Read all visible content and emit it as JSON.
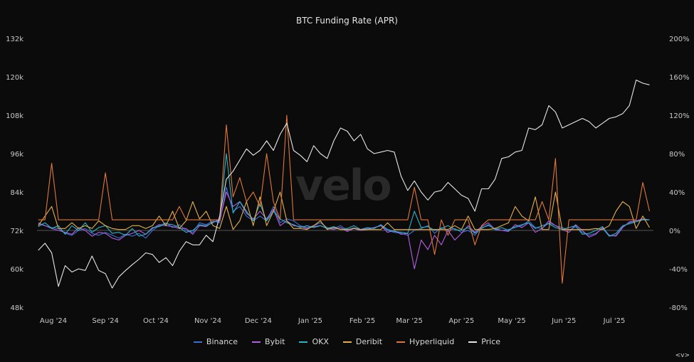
{
  "chart_data": {
    "type": "line",
    "title": "BTC Funding Rate (APR)",
    "watermark": "velo",
    "xlabel": "",
    "ylabel_left": "",
    "ylabel_right": "",
    "x_ticks": [
      {
        "date": "2024-08-01",
        "label": "Aug '24"
      },
      {
        "date": "2024-09-01",
        "label": "Sep '24"
      },
      {
        "date": "2024-10-01",
        "label": "Oct '24"
      },
      {
        "date": "2024-11-01",
        "label": "Nov '24"
      },
      {
        "date": "2024-12-01",
        "label": "Dec '24"
      },
      {
        "date": "2025-01-01",
        "label": "Jan '25"
      },
      {
        "date": "2025-02-01",
        "label": "Feb '25"
      },
      {
        "date": "2025-03-01",
        "label": "Mar '25"
      },
      {
        "date": "2025-04-01",
        "label": "Apr '25"
      },
      {
        "date": "2025-05-01",
        "label": "May '25"
      },
      {
        "date": "2025-06-01",
        "label": "Jun '25"
      },
      {
        "date": "2025-07-01",
        "label": "Jul '25"
      }
    ],
    "y_left": {
      "ylim": [
        48,
        132
      ],
      "ticks": [
        "132k",
        "120k",
        "108k",
        "96k",
        "84k",
        "72k",
        "60k",
        "48k"
      ],
      "values": [
        132,
        120,
        108,
        96,
        84,
        72,
        60,
        48
      ]
    },
    "y_right": {
      "ylim": [
        -80,
        200
      ],
      "ticks": [
        "200%",
        "160%",
        "120%",
        "80%",
        "40%",
        "0%",
        "-40%",
        "-80%"
      ],
      "values": [
        200,
        160,
        120,
        80,
        40,
        0,
        -40,
        -80
      ]
    },
    "grid": false,
    "legend_placement": "bottom",
    "x": [
      "2024-07-23",
      "2024-07-27",
      "2024-07-31",
      "2024-08-04",
      "2024-08-08",
      "2024-08-12",
      "2024-08-16",
      "2024-08-20",
      "2024-08-24",
      "2024-08-28",
      "2024-09-01",
      "2024-09-05",
      "2024-09-09",
      "2024-09-13",
      "2024-09-17",
      "2024-09-21",
      "2024-09-25",
      "2024-09-29",
      "2024-10-03",
      "2024-10-07",
      "2024-10-11",
      "2024-10-15",
      "2024-10-19",
      "2024-10-23",
      "2024-10-27",
      "2024-10-31",
      "2024-11-04",
      "2024-11-08",
      "2024-11-12",
      "2024-11-16",
      "2024-11-20",
      "2024-11-24",
      "2024-11-28",
      "2024-12-02",
      "2024-12-06",
      "2024-12-10",
      "2024-12-14",
      "2024-12-18",
      "2024-12-22",
      "2024-12-26",
      "2024-12-30",
      "2025-01-03",
      "2025-01-07",
      "2025-01-11",
      "2025-01-15",
      "2025-01-19",
      "2025-01-23",
      "2025-01-27",
      "2025-01-31",
      "2025-02-04",
      "2025-02-08",
      "2025-02-12",
      "2025-02-16",
      "2025-02-20",
      "2025-02-24",
      "2025-02-28",
      "2025-03-04",
      "2025-03-08",
      "2025-03-12",
      "2025-03-16",
      "2025-03-20",
      "2025-03-24",
      "2025-03-28",
      "2025-04-01",
      "2025-04-05",
      "2025-04-09",
      "2025-04-13",
      "2025-04-17",
      "2025-04-21",
      "2025-04-25",
      "2025-04-29",
      "2025-05-03",
      "2025-05-07",
      "2025-05-11",
      "2025-05-15",
      "2025-05-19",
      "2025-05-23",
      "2025-05-27",
      "2025-05-31",
      "2025-06-04",
      "2025-06-08",
      "2025-06-12",
      "2025-06-16",
      "2025-06-20",
      "2025-06-24",
      "2025-06-28",
      "2025-07-02",
      "2025-07-06",
      "2025-07-10",
      "2025-07-14",
      "2025-07-18",
      "2025-07-22"
    ],
    "series": [
      {
        "name": "Binance",
        "axis": "right",
        "unit": "%",
        "color": "#3b6fd6",
        "values": [
          8,
          5,
          3,
          2,
          -3,
          -5,
          0,
          2,
          -3,
          -5,
          -2,
          -5,
          -8,
          -4,
          -6,
          -3,
          -8,
          0,
          5,
          8,
          3,
          6,
          0,
          -2,
          8,
          6,
          10,
          8,
          45,
          20,
          25,
          15,
          10,
          15,
          10,
          25,
          8,
          12,
          10,
          5,
          3,
          5,
          8,
          3,
          2,
          5,
          0,
          3,
          1,
          2,
          3,
          5,
          0,
          -2,
          -3,
          -5,
          0,
          2,
          5,
          -3,
          3,
          0,
          2,
          -2,
          0,
          -5,
          3,
          5,
          2,
          0,
          1,
          3,
          5,
          10,
          3,
          2,
          8,
          5,
          3,
          0,
          4,
          -2,
          -5,
          -3,
          2,
          -6,
          -5,
          4,
          8,
          10,
          11,
          11
        ]
      },
      {
        "name": "Bybit",
        "axis": "right",
        "unit": "%",
        "color": "#b35ee0",
        "values": [
          7,
          5,
          2,
          0,
          -2,
          -4,
          3,
          0,
          -6,
          -2,
          -3,
          -8,
          -10,
          -5,
          -3,
          0,
          -4,
          2,
          6,
          5,
          4,
          2,
          2,
          -4,
          5,
          4,
          9,
          10,
          40,
          25,
          30,
          18,
          12,
          20,
          12,
          22,
          5,
          10,
          5,
          4,
          2,
          4,
          5,
          2,
          1,
          3,
          -1,
          2,
          0,
          1,
          3,
          5,
          -2,
          0,
          -4,
          -3,
          -40,
          -10,
          -20,
          -5,
          -15,
          0,
          -10,
          -3,
          5,
          -2,
          4,
          8,
          1,
          0,
          -1,
          6,
          3,
          8,
          -2,
          2,
          10,
          5,
          1,
          -2,
          6,
          0,
          -7,
          -4,
          3,
          -5,
          -6,
          3,
          9,
          10,
          12,
          11
        ]
      },
      {
        "name": "OKX",
        "axis": "right",
        "unit": "%",
        "color": "#2ab3c4",
        "values": [
          4,
          8,
          2,
          5,
          -4,
          5,
          0,
          8,
          -2,
          3,
          5,
          -3,
          -2,
          -5,
          2,
          -6,
          -4,
          3,
          4,
          7,
          6,
          3,
          -2,
          0,
          6,
          5,
          8,
          12,
          80,
          18,
          30,
          20,
          10,
          28,
          10,
          20,
          12,
          8,
          6,
          3,
          5,
          3,
          5,
          2,
          4,
          1,
          2,
          5,
          1,
          3,
          2,
          6,
          1,
          -1,
          -2,
          -3,
          20,
          3,
          4,
          0,
          2,
          5,
          1,
          0,
          3,
          -3,
          2,
          6,
          1,
          3,
          0,
          4,
          6,
          8,
          2,
          5,
          7,
          3,
          1,
          3,
          5,
          -4,
          -3,
          0,
          4,
          -6,
          -3,
          5,
          7,
          9,
          11,
          11
        ]
      },
      {
        "name": "Deribit",
        "axis": "right",
        "unit": "%",
        "color": "#e3b04b",
        "values": [
          5,
          15,
          25,
          2,
          2,
          8,
          2,
          5,
          2,
          10,
          5,
          2,
          1,
          1,
          5,
          5,
          2,
          5,
          15,
          5,
          20,
          2,
          10,
          30,
          12,
          20,
          5,
          2,
          25,
          1,
          10,
          30,
          5,
          35,
          5,
          20,
          40,
          10,
          2,
          2,
          1,
          5,
          10,
          1,
          3,
          1,
          1,
          2,
          1,
          1,
          1,
          1,
          8,
          1,
          1,
          1,
          1,
          1,
          1,
          1,
          1,
          1,
          5,
          1,
          15,
          1,
          1,
          1,
          2,
          5,
          8,
          25,
          15,
          10,
          35,
          1,
          1,
          40,
          1,
          1,
          1,
          1,
          1,
          2,
          1,
          5,
          20,
          30,
          25,
          2,
          15,
          3
        ]
      },
      {
        "name": "Hyperliquid",
        "axis": "right",
        "unit": "%",
        "color": "#e0773a",
        "values": [
          11,
          11,
          70,
          11,
          11,
          11,
          11,
          11,
          11,
          11,
          60,
          11,
          11,
          11,
          11,
          11,
          11,
          11,
          11,
          11,
          11,
          25,
          11,
          11,
          11,
          11,
          11,
          11,
          110,
          35,
          55,
          30,
          40,
          25,
          80,
          30,
          11,
          120,
          11,
          11,
          11,
          11,
          11,
          11,
          11,
          11,
          11,
          11,
          11,
          11,
          11,
          11,
          11,
          11,
          11,
          11,
          45,
          11,
          11,
          -25,
          11,
          -5,
          11,
          11,
          11,
          -15,
          5,
          11,
          11,
          11,
          11,
          11,
          11,
          11,
          11,
          30,
          11,
          75,
          -55,
          11,
          11,
          11,
          11,
          11,
          11,
          11,
          11,
          11,
          11,
          11,
          50,
          20
        ]
      },
      {
        "name": "Price",
        "axis": "left",
        "unit": "k",
        "color": "#e6e6e6",
        "values": [
          65.8,
          68,
          65,
          54.5,
          61,
          59,
          60,
          59.5,
          64,
          59.5,
          58.5,
          54,
          57.5,
          59.5,
          61.3,
          63,
          65,
          64.5,
          62,
          63.5,
          61,
          65.5,
          68.5,
          67.5,
          67.5,
          70.5,
          68.5,
          76.5,
          88,
          90.5,
          94,
          97.5,
          95.5,
          97,
          100,
          97,
          102,
          105.5,
          97,
          95.5,
          93.5,
          98.5,
          96,
          94.5,
          100,
          104,
          103,
          100,
          102,
          97.5,
          96,
          96.5,
          97,
          96.5,
          89,
          84.5,
          87.5,
          84,
          81.5,
          84,
          84.5,
          87,
          85,
          83,
          82,
          78,
          85,
          85,
          88,
          94.5,
          95,
          96.5,
          97,
          104,
          103.5,
          105,
          111,
          109,
          104,
          105,
          106,
          107,
          106,
          104,
          105.5,
          107,
          107.5,
          108.5,
          111,
          119,
          118,
          117.5
        ]
      }
    ]
  },
  "corner_label": "<v>"
}
